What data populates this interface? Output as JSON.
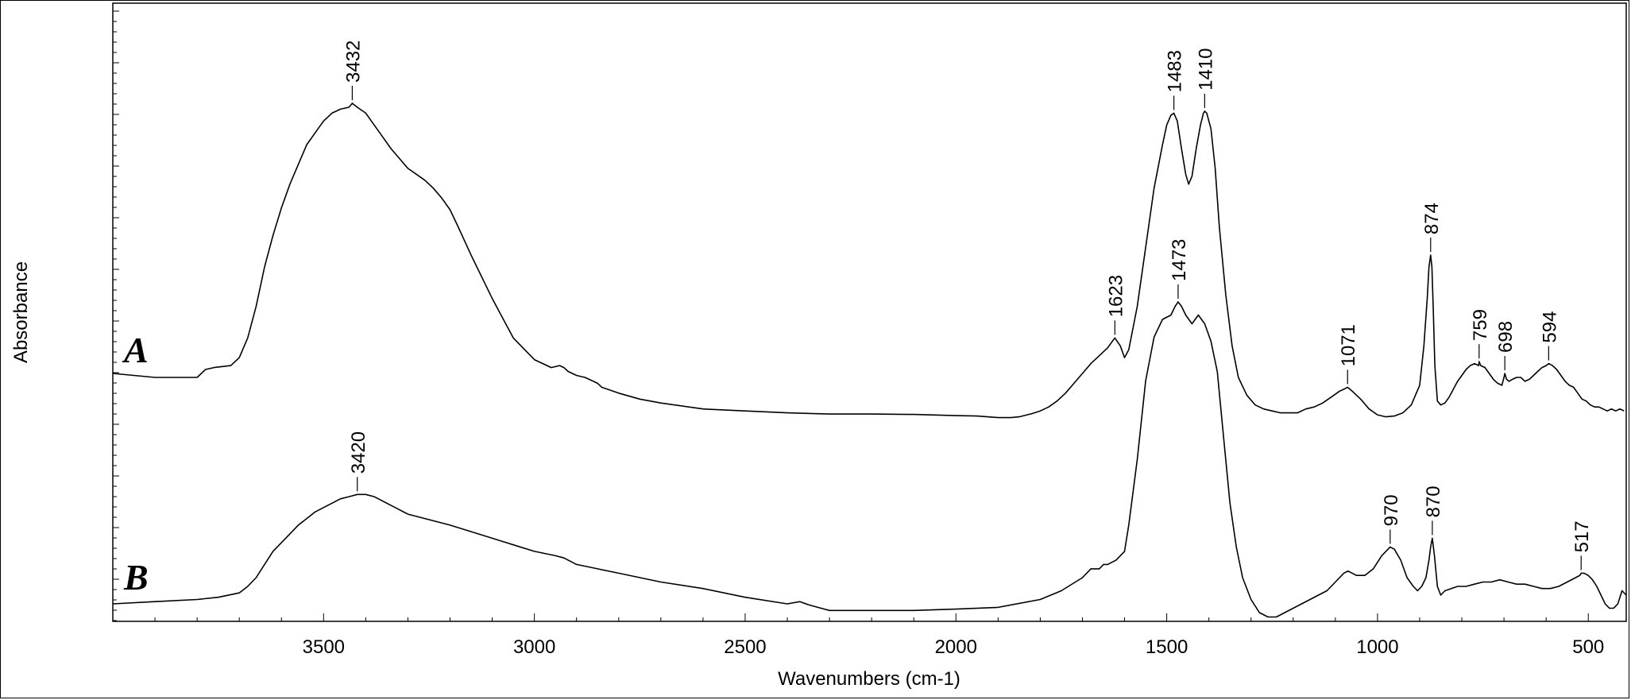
{
  "chart_data": {
    "type": "line",
    "title": "",
    "xlabel": "Wavenumbers (cm-1)",
    "ylabel": "Absorbance",
    "x_reversed": true,
    "xlim": [
      4000,
      410
    ],
    "ylim": [
      0,
      1.1
    ],
    "xticks": [
      3500,
      3000,
      2500,
      2000,
      1500,
      1000,
      500
    ],
    "grid": false,
    "legend": "none",
    "line_color": "#000000",
    "series": [
      {
        "name": "A",
        "x": [
          4000,
          3900,
          3800,
          3780,
          3760,
          3720,
          3700,
          3680,
          3660,
          3640,
          3620,
          3600,
          3580,
          3560,
          3540,
          3520,
          3500,
          3480,
          3460,
          3440,
          3432,
          3420,
          3400,
          3380,
          3360,
          3340,
          3320,
          3300,
          3280,
          3260,
          3240,
          3220,
          3200,
          3180,
          3150,
          3100,
          3050,
          3000,
          2960,
          2940,
          2930,
          2920,
          2900,
          2880,
          2860,
          2850,
          2840,
          2800,
          2750,
          2700,
          2600,
          2500,
          2400,
          2300,
          2200,
          2100,
          2000,
          1950,
          1900,
          1870,
          1850,
          1820,
          1800,
          1780,
          1760,
          1740,
          1720,
          1700,
          1680,
          1660,
          1640,
          1630,
          1623,
          1610,
          1600,
          1590,
          1570,
          1550,
          1530,
          1510,
          1500,
          1490,
          1483,
          1475,
          1465,
          1455,
          1448,
          1440,
          1430,
          1420,
          1413,
          1410,
          1405,
          1395,
          1385,
          1375,
          1360,
          1345,
          1330,
          1310,
          1290,
          1270,
          1250,
          1230,
          1210,
          1190,
          1170,
          1150,
          1130,
          1110,
          1090,
          1080,
          1071,
          1060,
          1040,
          1020,
          1000,
          980,
          960,
          940,
          920,
          900,
          890,
          882,
          878,
          874,
          871,
          868,
          864,
          858,
          850,
          840,
          830,
          820,
          810,
          800,
          790,
          780,
          770,
          760,
          759,
          755,
          745,
          735,
          725,
          715,
          705,
          700,
          698,
          694,
          688,
          680,
          670,
          660,
          650,
          640,
          630,
          620,
          610,
          600,
          594,
          585,
          575,
          565,
          555,
          545,
          535,
          525,
          515,
          505,
          495,
          485,
          475,
          465,
          455,
          445,
          435,
          425,
          415
        ],
        "values": [
          0.43,
          0.42,
          0.42,
          0.44,
          0.445,
          0.45,
          0.47,
          0.52,
          0.6,
          0.7,
          0.78,
          0.85,
          0.91,
          0.96,
          1.01,
          1.04,
          1.07,
          1.09,
          1.1,
          1.105,
          1.115,
          1.105,
          1.09,
          1.06,
          1.03,
          1.0,
          0.975,
          0.95,
          0.935,
          0.92,
          0.9,
          0.875,
          0.845,
          0.8,
          0.73,
          0.62,
          0.52,
          0.465,
          0.445,
          0.45,
          0.445,
          0.435,
          0.425,
          0.42,
          0.41,
          0.405,
          0.395,
          0.38,
          0.365,
          0.355,
          0.34,
          0.335,
          0.33,
          0.327,
          0.327,
          0.326,
          0.323,
          0.322,
          0.318,
          0.318,
          0.32,
          0.328,
          0.335,
          0.345,
          0.36,
          0.38,
          0.405,
          0.43,
          0.455,
          0.475,
          0.495,
          0.51,
          0.52,
          0.5,
          0.47,
          0.49,
          0.6,
          0.75,
          0.9,
          1.01,
          1.06,
          1.085,
          1.09,
          1.07,
          1.0,
          0.935,
          0.91,
          0.93,
          1.0,
          1.06,
          1.09,
          1.095,
          1.09,
          1.05,
          0.95,
          0.8,
          0.63,
          0.5,
          0.42,
          0.375,
          0.35,
          0.34,
          0.335,
          0.33,
          0.33,
          0.33,
          0.34,
          0.345,
          0.355,
          0.37,
          0.385,
          0.39,
          0.395,
          0.385,
          0.365,
          0.34,
          0.325,
          0.32,
          0.322,
          0.33,
          0.35,
          0.4,
          0.5,
          0.62,
          0.7,
          0.73,
          0.7,
          0.6,
          0.45,
          0.36,
          0.35,
          0.355,
          0.37,
          0.39,
          0.41,
          0.425,
          0.44,
          0.45,
          0.455,
          0.45,
          0.46,
          0.45,
          0.445,
          0.43,
          0.415,
          0.405,
          0.4,
          0.42,
          0.43,
          0.415,
          0.41,
          0.415,
          0.42,
          0.42,
          0.41,
          0.415,
          0.425,
          0.435,
          0.445,
          0.45,
          0.455,
          0.45,
          0.44,
          0.425,
          0.41,
          0.4,
          0.395,
          0.38,
          0.365,
          0.36,
          0.35,
          0.345,
          0.345,
          0.34,
          0.335,
          0.34,
          0.335,
          0.34,
          0.335
        ],
        "label_color": "#000000"
      },
      {
        "name": "B",
        "x": [
          4000,
          3900,
          3800,
          3750,
          3700,
          3680,
          3660,
          3640,
          3620,
          3600,
          3580,
          3560,
          3540,
          3520,
          3500,
          3480,
          3460,
          3440,
          3420,
          3400,
          3380,
          3360,
          3340,
          3320,
          3300,
          3280,
          3260,
          3240,
          3220,
          3200,
          3150,
          3100,
          3050,
          3000,
          2950,
          2930,
          2900,
          2850,
          2800,
          2700,
          2600,
          2500,
          2400,
          2370,
          2350,
          2320,
          2300,
          2200,
          2100,
          2000,
          1900,
          1800,
          1750,
          1700,
          1680,
          1660,
          1650,
          1640,
          1620,
          1600,
          1590,
          1570,
          1550,
          1530,
          1510,
          1490,
          1480,
          1473,
          1465,
          1455,
          1440,
          1425,
          1410,
          1395,
          1380,
          1365,
          1350,
          1335,
          1320,
          1300,
          1280,
          1260,
          1240,
          1220,
          1200,
          1180,
          1160,
          1140,
          1120,
          1100,
          1080,
          1070,
          1050,
          1030,
          1010,
          990,
          975,
          970,
          960,
          945,
          930,
          915,
          905,
          895,
          885,
          878,
          874,
          870,
          865,
          858,
          850,
          840,
          825,
          810,
          790,
          770,
          750,
          730,
          710,
          690,
          670,
          650,
          630,
          610,
          590,
          570,
          550,
          530,
          520,
          517,
          510,
          500,
          490,
          480,
          470,
          460,
          450,
          440,
          430,
          420,
          410
        ],
        "values": [
          0.02,
          0.025,
          0.03,
          0.035,
          0.045,
          0.06,
          0.08,
          0.11,
          0.14,
          0.16,
          0.18,
          0.2,
          0.215,
          0.23,
          0.24,
          0.25,
          0.26,
          0.265,
          0.27,
          0.27,
          0.265,
          0.255,
          0.245,
          0.235,
          0.225,
          0.22,
          0.215,
          0.21,
          0.205,
          0.2,
          0.185,
          0.17,
          0.155,
          0.14,
          0.13,
          0.125,
          0.11,
          0.1,
          0.09,
          0.07,
          0.055,
          0.035,
          0.02,
          0.025,
          0.018,
          0.01,
          0.005,
          0.005,
          0.005,
          0.008,
          0.012,
          0.03,
          0.05,
          0.08,
          0.1,
          0.1,
          0.11,
          0.11,
          0.12,
          0.14,
          0.2,
          0.35,
          0.53,
          0.63,
          0.67,
          0.68,
          0.7,
          0.71,
          0.7,
          0.68,
          0.66,
          0.68,
          0.66,
          0.62,
          0.55,
          0.4,
          0.25,
          0.15,
          0.08,
          0.03,
          0.0,
          -0.01,
          -0.01,
          0.0,
          0.01,
          0.02,
          0.03,
          0.04,
          0.05,
          0.07,
          0.09,
          0.095,
          0.085,
          0.085,
          0.1,
          0.13,
          0.145,
          0.15,
          0.145,
          0.12,
          0.08,
          0.06,
          0.05,
          0.06,
          0.08,
          0.12,
          0.15,
          0.17,
          0.13,
          0.06,
          0.04,
          0.05,
          0.055,
          0.06,
          0.06,
          0.065,
          0.07,
          0.07,
          0.075,
          0.07,
          0.065,
          0.065,
          0.06,
          0.055,
          0.055,
          0.06,
          0.07,
          0.08,
          0.085,
          0.09,
          0.09,
          0.085,
          0.075,
          0.06,
          0.04,
          0.02,
          0.01,
          0.01,
          0.02,
          0.05,
          0.04
        ]
      }
    ],
    "peak_labels_A": [
      {
        "x": 3432,
        "text": "3432"
      },
      {
        "x": 1623,
        "text": "1623"
      },
      {
        "x": 1483,
        "text": "1483"
      },
      {
        "x": 1410,
        "text": "1410"
      },
      {
        "x": 1071,
        "text": "1071"
      },
      {
        "x": 874,
        "text": "874"
      },
      {
        "x": 759,
        "text": "759"
      },
      {
        "x": 698,
        "text": "698"
      },
      {
        "x": 594,
        "text": "594"
      }
    ],
    "peak_labels_B": [
      {
        "x": 3420,
        "text": "3420"
      },
      {
        "x": 1473,
        "text": "1473"
      },
      {
        "x": 970,
        "text": "970"
      },
      {
        "x": 870,
        "text": "870"
      },
      {
        "x": 517,
        "text": "517"
      }
    ]
  }
}
